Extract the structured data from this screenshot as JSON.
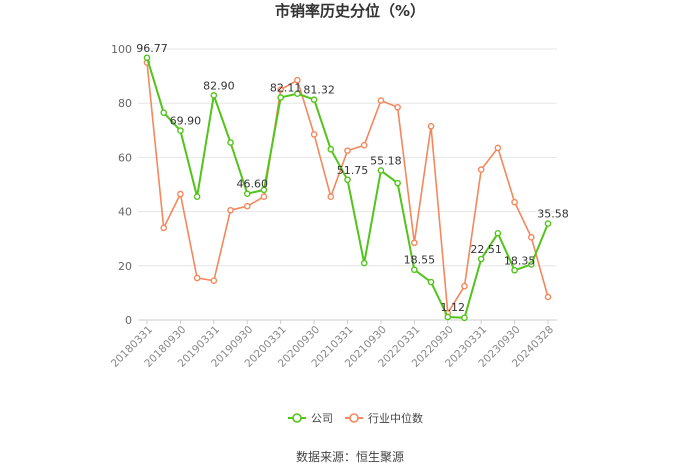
{
  "chart_data": {
    "type": "line",
    "title": "市销率历史分位（%）",
    "ylim": [
      0,
      100
    ],
    "yticks": [
      0,
      20,
      40,
      60,
      80,
      100
    ],
    "grid": true,
    "legend_position": "bottom",
    "x_tick_labels": [
      "20180331",
      "20180930",
      "20190331",
      "20190930",
      "20200331",
      "20200930",
      "20210331",
      "20210930",
      "20220331",
      "20220930",
      "20230331",
      "20230930",
      "20240328"
    ],
    "series": [
      {
        "name": "公司",
        "color": "#52c41a",
        "values": [
          96.77,
          76.5,
          69.9,
          45.5,
          82.9,
          65.5,
          46.6,
          48.0,
          82.11,
          83.5,
          81.32,
          63.0,
          51.75,
          21.0,
          55.18,
          50.5,
          18.55,
          14.0,
          1.12,
          0.8,
          22.51,
          32.0,
          18.35,
          20.5,
          35.58
        ],
        "labels": [
          "96.77",
          "",
          "69.90",
          "",
          "82.90",
          "",
          "46.60",
          "",
          "82.11",
          "",
          "81.32",
          "",
          "51.75",
          "",
          "55.18",
          "",
          "18.55",
          "",
          "1.12",
          "",
          "22.51",
          "",
          "18.35",
          "",
          "35.58"
        ]
      },
      {
        "name": "行业中位数",
        "color": "#f4875c",
        "values": [
          95.0,
          34.0,
          46.5,
          15.5,
          14.5,
          40.5,
          42.0,
          45.5,
          85.0,
          88.5,
          68.5,
          45.5,
          62.5,
          64.5,
          81.0,
          78.5,
          28.5,
          71.5,
          2.5,
          12.5,
          55.5,
          63.5,
          43.5,
          30.5,
          8.5
        ]
      }
    ]
  },
  "source_text": "数据来源：恒生聚源"
}
